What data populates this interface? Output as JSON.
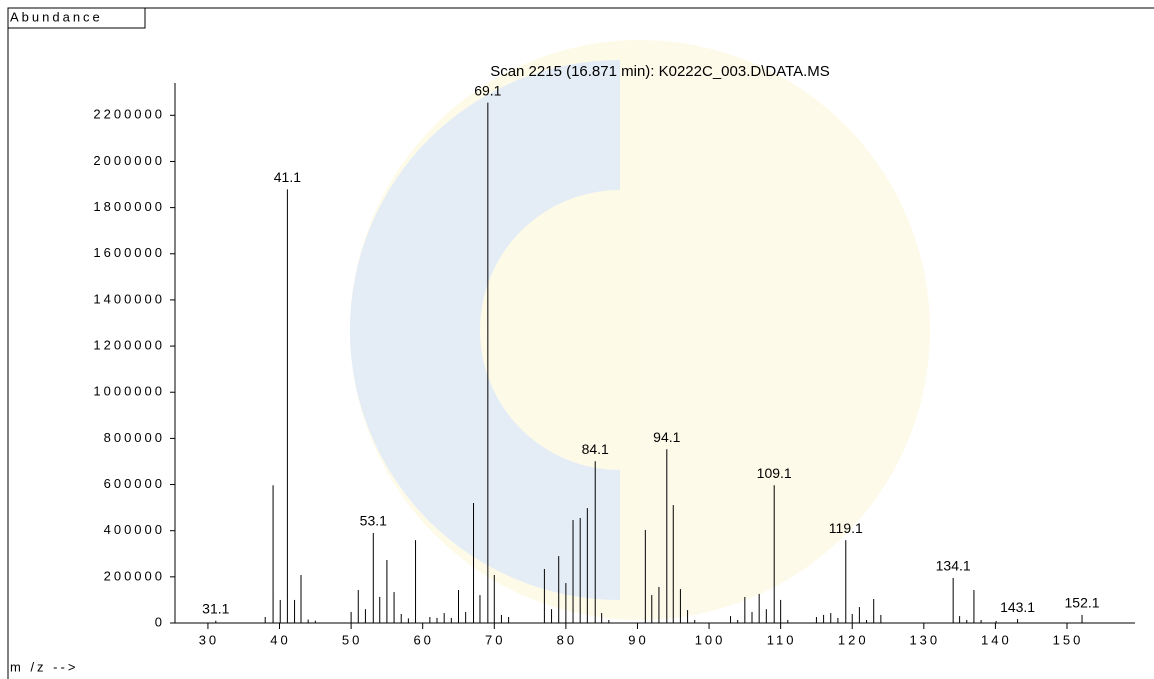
{
  "chart_data": {
    "type": "spectrum",
    "title": "Scan 2215 (16.871 min): K0222C_003.D\\DATA.MS",
    "y_label": "Abundance",
    "x_label": "m /z -->",
    "color": "#000000",
    "xlim": [
      25.4,
      159.5
    ],
    "ylim": [
      0,
      2340000
    ],
    "xticks": [
      30,
      40,
      50,
      60,
      70,
      80,
      90,
      100,
      110,
      120,
      130,
      140,
      150
    ],
    "yticks": [
      0,
      200000,
      400000,
      600000,
      800000,
      1000000,
      1200000,
      1400000,
      1600000,
      1800000,
      2000000,
      2200000
    ],
    "x": [
      31.1,
      38,
      39.1,
      40.1,
      41.1,
      42.1,
      43,
      44,
      45,
      50,
      51,
      52,
      53.1,
      54,
      55,
      56,
      57,
      58,
      59,
      61,
      62,
      63,
      64,
      65,
      66,
      67.1,
      68,
      69.1,
      70,
      71,
      72,
      77,
      78,
      79,
      80,
      81,
      82,
      83,
      84.1,
      85,
      86,
      91.1,
      92,
      93,
      94.1,
      95,
      96,
      97,
      98,
      103,
      104,
      105,
      106,
      107,
      108,
      109.1,
      110,
      111,
      115,
      116,
      117,
      118,
      119.1,
      120,
      121,
      122,
      123,
      124,
      134.1,
      135,
      136,
      137,
      138,
      140.1,
      143.1,
      152.1
    ],
    "values": [
      10000,
      26000,
      597000,
      100000,
      1879000,
      100000,
      208000,
      15000,
      10000,
      48000,
      143000,
      60000,
      390000,
      113000,
      273000,
      134000,
      39000,
      20000,
      359000,
      26000,
      22000,
      43000,
      22000,
      143000,
      48000,
      520000,
      121000,
      2255000,
      208000,
      35000,
      26000,
      234000,
      60000,
      290000,
      173000,
      446000,
      455000,
      498000,
      701000,
      43000,
      13000,
      403000,
      121000,
      156000,
      753000,
      511000,
      147000,
      56000,
      13000,
      30000,
      13000,
      113000,
      48000,
      126000,
      60000,
      597000,
      100000,
      13000,
      26000,
      35000,
      43000,
      22000,
      359000,
      39000,
      69000,
      13000,
      104000,
      35000,
      195000,
      30000,
      13000,
      143000,
      13000,
      9000,
      17000,
      35000
    ],
    "peak_labels": [
      "31.1",
      null,
      null,
      null,
      "41.1",
      null,
      null,
      null,
      null,
      null,
      null,
      null,
      "53.1",
      null,
      null,
      null,
      null,
      null,
      null,
      null,
      null,
      null,
      null,
      null,
      null,
      null,
      null,
      "69.1",
      null,
      null,
      null,
      null,
      null,
      null,
      null,
      null,
      null,
      null,
      "84.1",
      null,
      null,
      null,
      null,
      null,
      "94.1",
      null,
      null,
      null,
      null,
      null,
      null,
      null,
      null,
      null,
      null,
      "109.1",
      null,
      null,
      null,
      null,
      null,
      null,
      "119.1",
      null,
      null,
      null,
      null,
      null,
      "134.1",
      null,
      null,
      null,
      null,
      null,
      "143.1",
      "152.1"
    ]
  }
}
